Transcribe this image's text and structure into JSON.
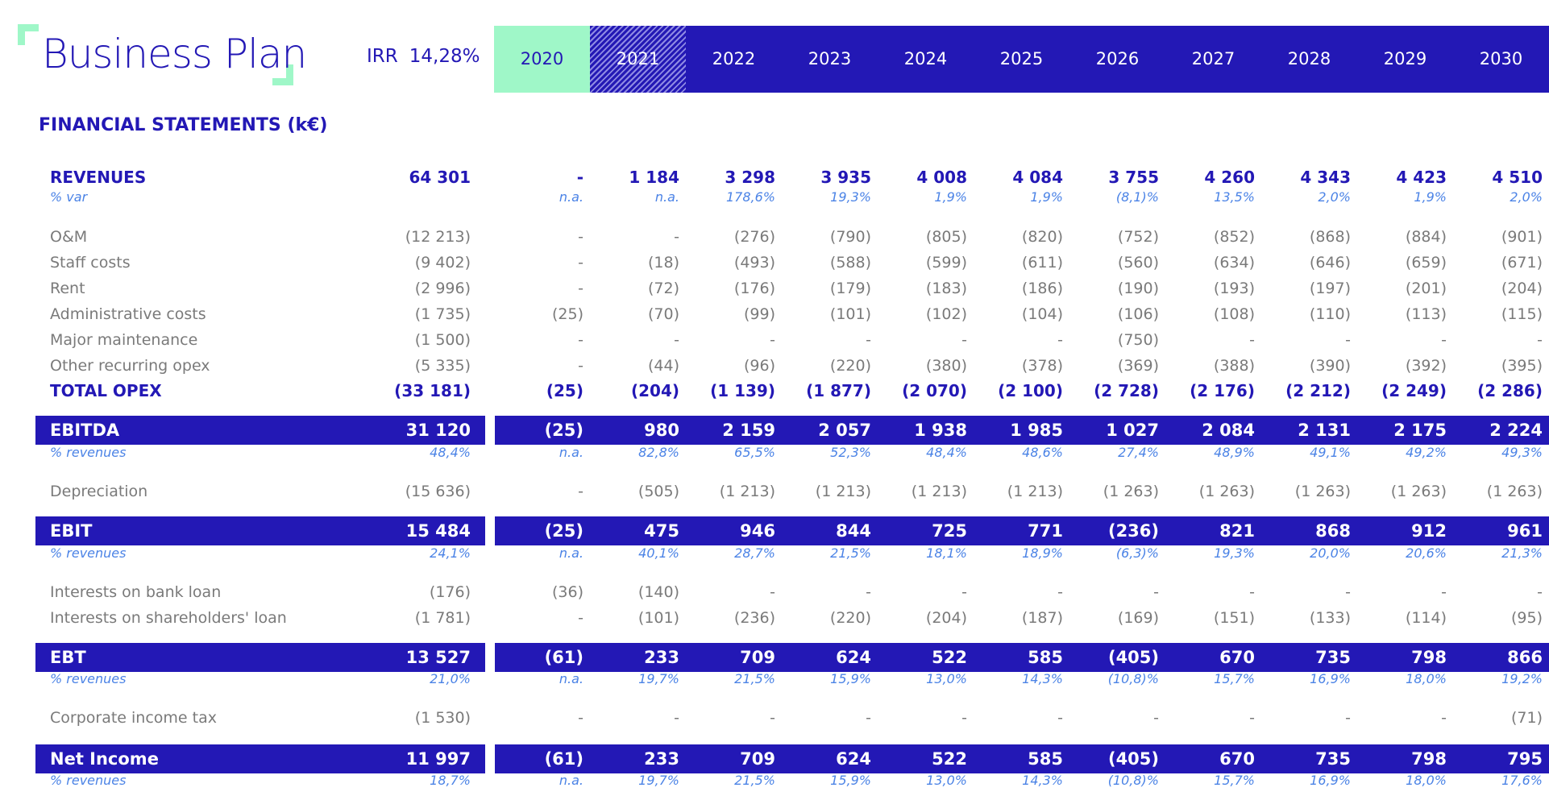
{
  "header": {
    "title": "Business Plan",
    "irr_label": "IRR",
    "irr_value": "14,28%",
    "years": [
      "2020",
      "2021",
      "2022",
      "2023",
      "2024",
      "2025",
      "2026",
      "2027",
      "2028",
      "2029",
      "2030"
    ]
  },
  "section_title": "FINANCIAL STATEMENTS (k€)",
  "colors": {
    "primary": "#2318b5",
    "accent": "#9ff7c8",
    "pct_text": "#4b83e6",
    "muted": "#7a7a7a"
  },
  "rows": [
    {
      "type": "rev",
      "label": "REVENUES",
      "total": "64 301",
      "values": [
        "-",
        "1 184",
        "3 298",
        "3 935",
        "4 008",
        "4 084",
        "3 755",
        "4 260",
        "4 343",
        "4 423",
        "4 510"
      ]
    },
    {
      "type": "pct",
      "label": "% var",
      "total": "",
      "values": [
        "n.a.",
        "n.a.",
        "178,6%",
        "19,3%",
        "1,9%",
        "1,9%",
        "(8,1)%",
        "13,5%",
        "2,0%",
        "1,9%",
        "2,0%"
      ]
    },
    {
      "type": "normal",
      "label": "O&M",
      "total": "(12 213)",
      "values": [
        "-",
        "-",
        "(276)",
        "(790)",
        "(805)",
        "(820)",
        "(752)",
        "(852)",
        "(868)",
        "(884)",
        "(901)"
      ]
    },
    {
      "type": "normal",
      "label": "Staff costs",
      "total": "(9 402)",
      "values": [
        "-",
        "(18)",
        "(493)",
        "(588)",
        "(599)",
        "(611)",
        "(560)",
        "(634)",
        "(646)",
        "(659)",
        "(671)"
      ]
    },
    {
      "type": "normal",
      "label": "Rent",
      "total": "(2 996)",
      "values": [
        "-",
        "(72)",
        "(176)",
        "(179)",
        "(183)",
        "(186)",
        "(190)",
        "(193)",
        "(197)",
        "(201)",
        "(204)"
      ]
    },
    {
      "type": "normal",
      "label": "Administrative costs",
      "total": "(1 735)",
      "values": [
        "(25)",
        "(70)",
        "(99)",
        "(101)",
        "(102)",
        "(104)",
        "(106)",
        "(108)",
        "(110)",
        "(113)",
        "(115)"
      ]
    },
    {
      "type": "normal",
      "label": "Major maintenance",
      "total": "(1 500)",
      "values": [
        "-",
        "-",
        "-",
        "-",
        "-",
        "-",
        "(750)",
        "-",
        "-",
        "-",
        "-"
      ]
    },
    {
      "type": "normal",
      "label": "Other recurring opex",
      "total": "(5 335)",
      "values": [
        "-",
        "(44)",
        "(96)",
        "(220)",
        "(380)",
        "(378)",
        "(369)",
        "(388)",
        "(390)",
        "(392)",
        "(395)"
      ]
    },
    {
      "type": "total",
      "label": "TOTAL OPEX",
      "total": "(33 181)",
      "values": [
        "(25)",
        "(204)",
        "(1 139)",
        "(1 877)",
        "(2 070)",
        "(2 100)",
        "(2 728)",
        "(2 176)",
        "(2 212)",
        "(2 249)",
        "(2 286)"
      ]
    },
    {
      "type": "band",
      "label": "EBITDA",
      "total": "31 120",
      "values": [
        "(25)",
        "980",
        "2 159",
        "2 057",
        "1 938",
        "1 985",
        "1 027",
        "2 084",
        "2 131",
        "2 175",
        "2 224"
      ]
    },
    {
      "type": "pct",
      "label": "% revenues",
      "total": "48,4%",
      "values": [
        "n.a.",
        "82,8%",
        "65,5%",
        "52,3%",
        "48,4%",
        "48,6%",
        "27,4%",
        "48,9%",
        "49,1%",
        "49,2%",
        "49,3%"
      ]
    },
    {
      "type": "normal",
      "label": "Depreciation",
      "total": "(15 636)",
      "values": [
        "-",
        "(505)",
        "(1 213)",
        "(1 213)",
        "(1 213)",
        "(1 213)",
        "(1 263)",
        "(1 263)",
        "(1 263)",
        "(1 263)",
        "(1 263)"
      ]
    },
    {
      "type": "band",
      "label": "EBIT",
      "total": "15 484",
      "values": [
        "(25)",
        "475",
        "946",
        "844",
        "725",
        "771",
        "(236)",
        "821",
        "868",
        "912",
        "961"
      ]
    },
    {
      "type": "pct",
      "label": "% revenues",
      "total": "24,1%",
      "values": [
        "n.a.",
        "40,1%",
        "28,7%",
        "21,5%",
        "18,1%",
        "18,9%",
        "(6,3)%",
        "19,3%",
        "20,0%",
        "20,6%",
        "21,3%"
      ]
    },
    {
      "type": "normal",
      "label": "Interests on bank loan",
      "total": "(176)",
      "values": [
        "(36)",
        "(140)",
        "-",
        "-",
        "-",
        "-",
        "-",
        "-",
        "-",
        "-",
        "-"
      ]
    },
    {
      "type": "normal",
      "label": "Interests on shareholders' loan",
      "total": "(1 781)",
      "values": [
        "-",
        "(101)",
        "(236)",
        "(220)",
        "(204)",
        "(187)",
        "(169)",
        "(151)",
        "(133)",
        "(114)",
        "(95)"
      ]
    },
    {
      "type": "band",
      "label": "EBT",
      "total": "13 527",
      "values": [
        "(61)",
        "233",
        "709",
        "624",
        "522",
        "585",
        "(405)",
        "670",
        "735",
        "798",
        "866"
      ]
    },
    {
      "type": "pct",
      "label": "% revenues",
      "total": "21,0%",
      "values": [
        "n.a.",
        "19,7%",
        "21,5%",
        "15,9%",
        "13,0%",
        "14,3%",
        "(10,8)%",
        "15,7%",
        "16,9%",
        "18,0%",
        "19,2%"
      ]
    },
    {
      "type": "normal",
      "label": "Corporate income tax",
      "total": "(1 530)",
      "values": [
        "-",
        "-",
        "-",
        "-",
        "-",
        "-",
        "-",
        "-",
        "-",
        "-",
        "(71)"
      ]
    },
    {
      "type": "band",
      "label": "Net Income",
      "total": "11 997",
      "values": [
        "(61)",
        "233",
        "709",
        "624",
        "522",
        "585",
        "(405)",
        "670",
        "735",
        "798",
        "795"
      ]
    },
    {
      "type": "pct",
      "label": "% revenues",
      "total": "18,7%",
      "values": [
        "n.a.",
        "19,7%",
        "21,5%",
        "15,9%",
        "13,0%",
        "14,3%",
        "(10,8)%",
        "15,7%",
        "16,9%",
        "18,0%",
        "17,6%"
      ]
    }
  ]
}
